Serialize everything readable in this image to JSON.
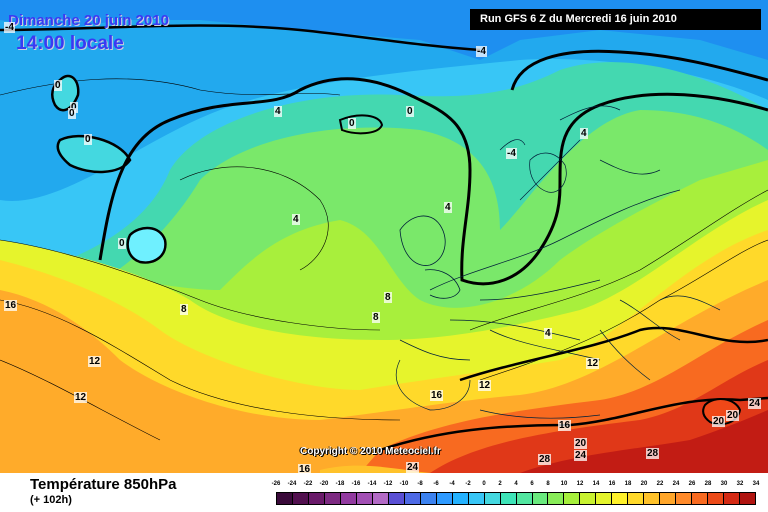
{
  "header": {
    "date_line": "Dimanche 20 juin 2010",
    "time_line": "14:00 locale",
    "run_info": "Run GFS 6 Z du Mercredi 16 juin 2010"
  },
  "copyright": "Copyright © 2010 Meteociel.fr",
  "footer": {
    "title": "Température 850hPa",
    "subtitle": "(+ 102h)"
  },
  "contour_labels": [
    {
      "text": "-4",
      "key": "nw-corner"
    },
    {
      "text": "-4",
      "key": "north-atlantic"
    },
    {
      "text": "0",
      "key": "greenland-a"
    },
    {
      "text": "0",
      "key": "greenland-b"
    },
    {
      "text": "0",
      "key": "greenland-c"
    },
    {
      "text": "0",
      "key": "greenland-d"
    },
    {
      "text": "4",
      "key": "iceland-n"
    },
    {
      "text": "0",
      "key": "iceland"
    },
    {
      "text": "0",
      "key": "norwegian-sea"
    },
    {
      "text": "4",
      "key": "scandinavia"
    },
    {
      "text": "-4",
      "key": "finland"
    },
    {
      "text": "4",
      "key": "mid-atlantic"
    },
    {
      "text": "4",
      "key": "uk"
    },
    {
      "text": "0",
      "key": "west-cold-pool"
    },
    {
      "text": "8",
      "key": "central-atlantic"
    },
    {
      "text": "8",
      "key": "biscay"
    },
    {
      "text": "8",
      "key": "iberia-n"
    },
    {
      "text": "16",
      "key": "west-edge"
    },
    {
      "text": "12",
      "key": "sw-atlantic"
    },
    {
      "text": "12",
      "key": "sw-atlantic-b"
    },
    {
      "text": "4",
      "key": "alps"
    },
    {
      "text": "12",
      "key": "balkans"
    },
    {
      "text": "12",
      "key": "iberia-s"
    },
    {
      "text": "16",
      "key": "western-med"
    },
    {
      "text": "16",
      "key": "north-africa-a"
    },
    {
      "text": "16",
      "key": "morocco"
    },
    {
      "text": "24",
      "key": "morocco-b"
    },
    {
      "text": "20",
      "key": "libya"
    },
    {
      "text": "24",
      "key": "libya-b"
    },
    {
      "text": "28",
      "key": "algeria"
    },
    {
      "text": "28",
      "key": "libya-c"
    },
    {
      "text": "20",
      "key": "middle-east-a"
    },
    {
      "text": "20",
      "key": "middle-east-b"
    },
    {
      "text": "24",
      "key": "middle-east-c"
    }
  ],
  "legend": {
    "ticks": [
      "-26",
      "-24",
      "-22",
      "-20",
      "-18",
      "-16",
      "-14",
      "-12",
      "-10",
      "-8",
      "-6",
      "-4",
      "-2",
      "0",
      "2",
      "4",
      "6",
      "8",
      "10",
      "12",
      "14",
      "16",
      "18",
      "20",
      "22",
      "24",
      "26",
      "28",
      "30",
      "32",
      "34"
    ],
    "colors": [
      "#3a0a3a",
      "#52104f",
      "#6a1a6a",
      "#7d2a82",
      "#923aa0",
      "#a24fb4",
      "#b36ac6",
      "#5a4fd4",
      "#4e6ae6",
      "#3c82f0",
      "#2e9aff",
      "#24b2ff",
      "#38c6f6",
      "#44d8e0",
      "#3ee4b8",
      "#52e6a0",
      "#6aea7e",
      "#88ec58",
      "#a6ef3c",
      "#c8f230",
      "#e4f42c",
      "#fff12a",
      "#ffd92a",
      "#ffc22a",
      "#ffa62a",
      "#ff8a2a",
      "#f86a20",
      "#ec4a18",
      "#d42a14",
      "#b01410"
    ]
  }
}
